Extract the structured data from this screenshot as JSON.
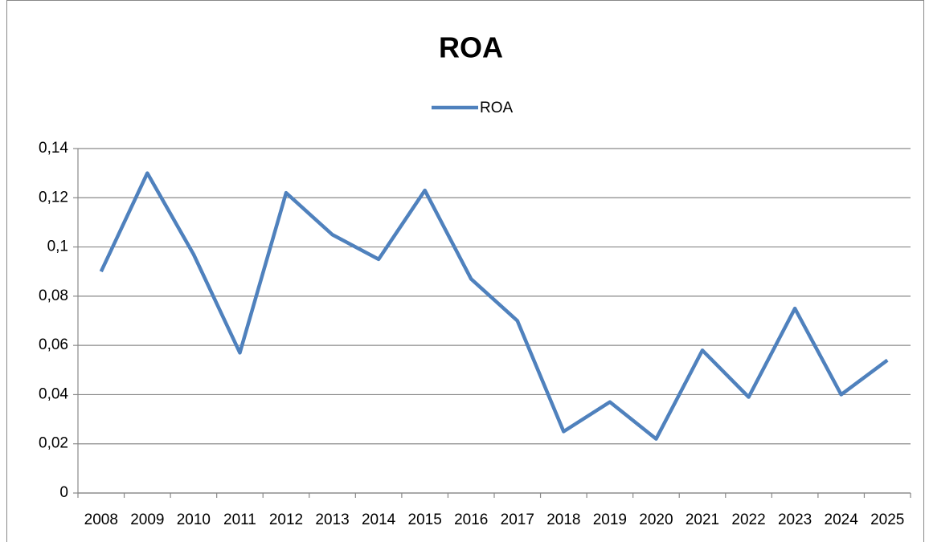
{
  "chart_data": {
    "type": "line",
    "title": "ROA",
    "categories": [
      "2008",
      "2009",
      "2010",
      "2011",
      "2012",
      "2013",
      "2014",
      "2015",
      "2016",
      "2017",
      "2018",
      "2019",
      "2020",
      "2021",
      "2022",
      "2023",
      "2024",
      "2025"
    ],
    "series": [
      {
        "name": "ROA",
        "color": "#4f81bd",
        "values": [
          0.09,
          0.13,
          0.097,
          0.057,
          0.122,
          0.105,
          0.095,
          0.123,
          0.087,
          0.07,
          0.025,
          0.037,
          0.022,
          0.058,
          0.039,
          0.075,
          0.04,
          0.054
        ]
      }
    ],
    "ylim": [
      0,
      0.14
    ],
    "yticks": [
      0,
      {
        "value": 0.02,
        "label": "0,02"
      },
      {
        "value": 0.04,
        "label": "0,04"
      },
      {
        "value": 0.06,
        "label": "0,06"
      },
      {
        "value": 0.08,
        "label": "0,08"
      },
      {
        "value": 0.1,
        "label": "0,1"
      },
      {
        "value": 0.12,
        "label": "0,12"
      },
      {
        "value": 0.14,
        "label": "0,14"
      }
    ],
    "grid": true,
    "legend": "top"
  }
}
